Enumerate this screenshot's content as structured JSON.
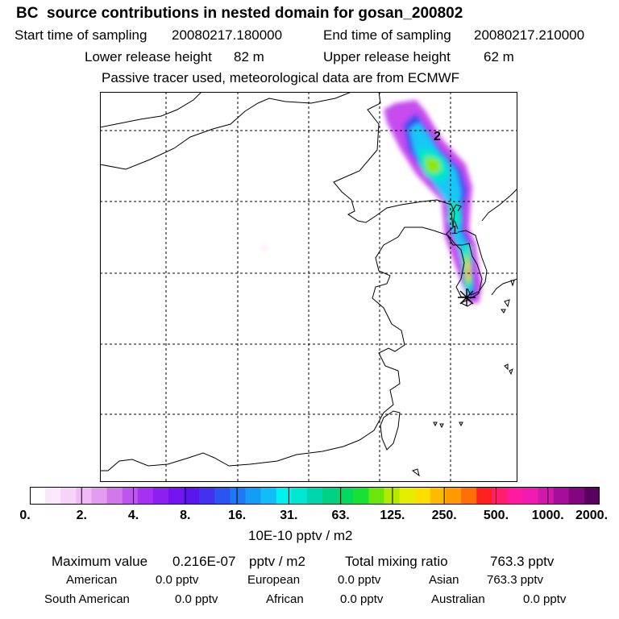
{
  "header": {
    "title": "BC  source contributions in nested domain for gosan_200802",
    "start_label": "Start time of sampling",
    "start_value": "20080217.180000",
    "end_label": "End time of sampling",
    "end_value": "20080217.210000",
    "lower_label": "Lower release height",
    "lower_value": "82 m",
    "upper_label": "Upper release height",
    "upper_value": "62 m",
    "note": "Passive tracer used, meteorological data are from ECMWF"
  },
  "chart_data": {
    "type": "heatmap",
    "title": "BC  source contributions in nested domain for gosan_200802",
    "colorbar": {
      "tick_labels": [
        "0.",
        "2.",
        "4.",
        "8.",
        "16.",
        "31.",
        "63.",
        "125.",
        "250.",
        "500.",
        "1000.",
        "2000."
      ],
      "colors": [
        "#ffffff",
        "#fce8fc",
        "#f7d2f9",
        "#f0bbf5",
        "#e49cf0",
        "#d278ec",
        "#bf55ee",
        "#a730f2",
        "#8e1ff0",
        "#7414f0",
        "#5a16ee",
        "#4430ef",
        "#2c54f3",
        "#1f78f5",
        "#159cf7",
        "#10bdf8",
        "#00f0f0",
        "#00e6d3",
        "#00d6ad",
        "#00d285",
        "#00da5d",
        "#19e034",
        "#6ae60a",
        "#b4ea00",
        "#e6ee00",
        "#ffdd00",
        "#ffbb00",
        "#ff9a00",
        "#ff6e06",
        "#ff2020",
        "#ff1e6c",
        "#ff1aa0",
        "#f01ab4",
        "#d018ad",
        "#a80c9a",
        "#820682",
        "#5a0060"
      ],
      "unit": "10E-10 pptv / m2"
    },
    "receptor_marker": "gosan",
    "contour_labels": [
      "2",
      "1"
    ]
  },
  "summary": {
    "max_label": "Maximum value",
    "max_value": "0.216E-07",
    "max_unit": "pptv / m2",
    "total_label": "Total mixing ratio",
    "total_value": "763.3 pptv"
  },
  "regions": [
    {
      "name": "American",
      "value": "0.0 pptv"
    },
    {
      "name": "European",
      "value": "0.0 pptv"
    },
    {
      "name": "Asian",
      "value": "763.3 pptv"
    },
    {
      "name": "South American",
      "value": "0.0 pptv"
    },
    {
      "name": "African",
      "value": "0.0 pptv"
    },
    {
      "name": "Australian",
      "value": "0.0 pptv"
    }
  ]
}
